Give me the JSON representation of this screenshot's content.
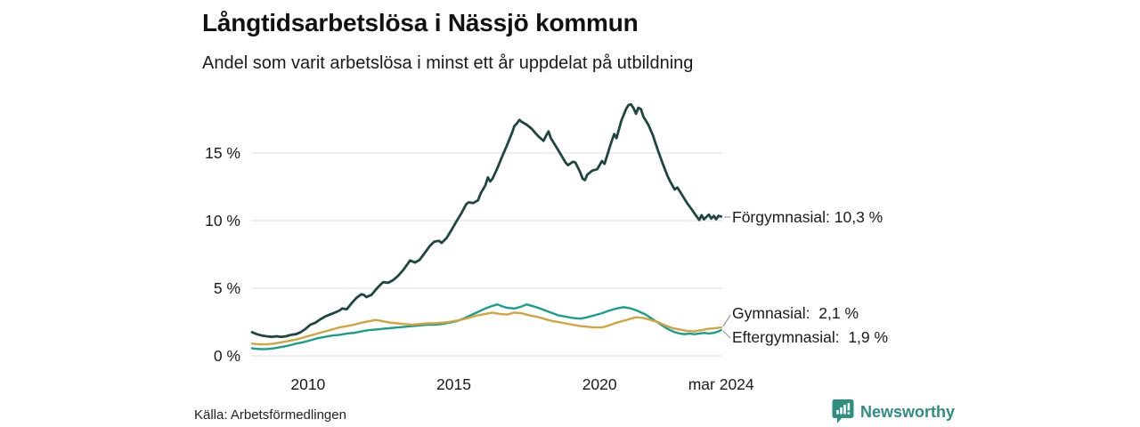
{
  "chart": {
    "title": "Långtidsarbetslösa i Nässjö kommun",
    "subtitle": "Andel som varit arbetslösa i minst ett år uppdelat på utbildning",
    "source": "Källa: Arbetsförmedlingen"
  },
  "branding": {
    "logo_text": "Newsworthy",
    "logo_color": "#2e8e80"
  },
  "chart_data": {
    "type": "line",
    "title": "Långtidsarbetslösa i Nässjö kommun",
    "subtitle": "Andel som varit arbetslösa i minst ett år uppdelat på utbildning",
    "source": "Källa: Arbetsförmedlingen",
    "grid": true,
    "background": "#ffffff",
    "grid_color": "#e4e4e4",
    "text_color": "#1a1a1a",
    "x_domain": [
      2008.05,
      2024.21
    ],
    "ylim": [
      0,
      19.5
    ],
    "y_unit": "%",
    "y_ticks": [
      {
        "label": "0 %",
        "value": 0
      },
      {
        "label": "5 %",
        "value": 5
      },
      {
        "label": "10 %",
        "value": 10
      },
      {
        "label": "15 %",
        "value": 15
      }
    ],
    "x_ticks": [
      {
        "label": "2010",
        "year": 2010
      },
      {
        "label": "2015",
        "year": 2015
      },
      {
        "label": "2020",
        "year": 2020
      },
      {
        "label": "mar 2024",
        "year": 2024.17
      }
    ],
    "series": [
      {
        "name": "Förgymnasial",
        "label": "Förgymnasial: 10,3 %",
        "end_value": 10.3,
        "end_value_label": "10,3 %",
        "color": "#1e4741",
        "points": [
          [
            2008.08,
            1.75
          ],
          [
            2008.25,
            1.6
          ],
          [
            2008.42,
            1.5
          ],
          [
            2008.58,
            1.45
          ],
          [
            2008.75,
            1.4
          ],
          [
            2008.92,
            1.45
          ],
          [
            2009.08,
            1.4
          ],
          [
            2009.25,
            1.45
          ],
          [
            2009.42,
            1.55
          ],
          [
            2009.58,
            1.6
          ],
          [
            2009.75,
            1.75
          ],
          [
            2009.92,
            2.0
          ],
          [
            2010.08,
            2.3
          ],
          [
            2010.25,
            2.45
          ],
          [
            2010.42,
            2.7
          ],
          [
            2010.58,
            2.9
          ],
          [
            2010.75,
            3.05
          ],
          [
            2010.92,
            3.2
          ],
          [
            2011.08,
            3.35
          ],
          [
            2011.17,
            3.5
          ],
          [
            2011.33,
            3.45
          ],
          [
            2011.5,
            3.9
          ],
          [
            2011.67,
            4.3
          ],
          [
            2011.83,
            4.55
          ],
          [
            2011.92,
            4.5
          ],
          [
            2012.0,
            4.35
          ],
          [
            2012.17,
            4.5
          ],
          [
            2012.33,
            4.9
          ],
          [
            2012.5,
            5.3
          ],
          [
            2012.58,
            5.45
          ],
          [
            2012.75,
            5.4
          ],
          [
            2012.92,
            5.6
          ],
          [
            2013.08,
            5.9
          ],
          [
            2013.25,
            6.3
          ],
          [
            2013.42,
            6.8
          ],
          [
            2013.5,
            7.05
          ],
          [
            2013.67,
            6.9
          ],
          [
            2013.83,
            7.1
          ],
          [
            2014.0,
            7.6
          ],
          [
            2014.17,
            8.1
          ],
          [
            2014.33,
            8.45
          ],
          [
            2014.5,
            8.5
          ],
          [
            2014.58,
            8.35
          ],
          [
            2014.75,
            8.7
          ],
          [
            2014.92,
            9.3
          ],
          [
            2015.08,
            9.9
          ],
          [
            2015.25,
            10.5
          ],
          [
            2015.42,
            11.2
          ],
          [
            2015.5,
            11.35
          ],
          [
            2015.67,
            11.3
          ],
          [
            2015.83,
            11.5
          ],
          [
            2015.92,
            12.0
          ],
          [
            2016.08,
            12.6
          ],
          [
            2016.17,
            13.2
          ],
          [
            2016.25,
            12.9
          ],
          [
            2016.33,
            13.1
          ],
          [
            2016.5,
            13.9
          ],
          [
            2016.67,
            14.8
          ],
          [
            2016.83,
            15.6
          ],
          [
            2017.0,
            16.5
          ],
          [
            2017.08,
            17.0
          ],
          [
            2017.17,
            17.2
          ],
          [
            2017.25,
            17.45
          ],
          [
            2017.33,
            17.3
          ],
          [
            2017.5,
            17.1
          ],
          [
            2017.67,
            16.8
          ],
          [
            2017.83,
            16.4
          ],
          [
            2017.92,
            16.2
          ],
          [
            2018.08,
            15.9
          ],
          [
            2018.17,
            16.3
          ],
          [
            2018.25,
            16.6
          ],
          [
            2018.33,
            16.1
          ],
          [
            2018.5,
            15.5
          ],
          [
            2018.67,
            14.9
          ],
          [
            2018.83,
            14.3
          ],
          [
            2018.92,
            14.1
          ],
          [
            2019.08,
            14.35
          ],
          [
            2019.17,
            14.3
          ],
          [
            2019.33,
            13.6
          ],
          [
            2019.42,
            13.1
          ],
          [
            2019.5,
            13.0
          ],
          [
            2019.58,
            13.4
          ],
          [
            2019.75,
            13.7
          ],
          [
            2019.92,
            13.8
          ],
          [
            2020.0,
            14.1
          ],
          [
            2020.08,
            14.4
          ],
          [
            2020.17,
            14.2
          ],
          [
            2020.33,
            15.3
          ],
          [
            2020.42,
            15.9
          ],
          [
            2020.5,
            16.4
          ],
          [
            2020.58,
            16.1
          ],
          [
            2020.75,
            17.4
          ],
          [
            2020.92,
            18.3
          ],
          [
            2021.0,
            18.55
          ],
          [
            2021.08,
            18.6
          ],
          [
            2021.17,
            18.3
          ],
          [
            2021.25,
            17.9
          ],
          [
            2021.33,
            18.35
          ],
          [
            2021.42,
            18.25
          ],
          [
            2021.5,
            17.7
          ],
          [
            2021.67,
            17.1
          ],
          [
            2021.83,
            16.3
          ],
          [
            2022.0,
            15.2
          ],
          [
            2022.17,
            14.2
          ],
          [
            2022.33,
            13.3
          ],
          [
            2022.42,
            12.9
          ],
          [
            2022.5,
            12.6
          ],
          [
            2022.58,
            12.3
          ],
          [
            2022.67,
            12.45
          ],
          [
            2022.83,
            11.9
          ],
          [
            2023.0,
            11.3
          ],
          [
            2023.17,
            10.8
          ],
          [
            2023.33,
            10.3
          ],
          [
            2023.42,
            10.05
          ],
          [
            2023.5,
            10.4
          ],
          [
            2023.58,
            10.1
          ],
          [
            2023.75,
            10.45
          ],
          [
            2023.83,
            10.15
          ],
          [
            2023.92,
            10.35
          ],
          [
            2024.0,
            10.1
          ],
          [
            2024.08,
            10.35
          ],
          [
            2024.17,
            10.3
          ]
        ]
      },
      {
        "name": "Gymnasial",
        "label": "Gymnasial:  2,1 %",
        "end_value": 2.1,
        "end_value_label": "2,1 %",
        "color": "#d2a43e",
        "points": [
          [
            2008.08,
            0.9
          ],
          [
            2008.33,
            0.85
          ],
          [
            2008.58,
            0.85
          ],
          [
            2008.83,
            0.9
          ],
          [
            2009.08,
            1.0
          ],
          [
            2009.33,
            1.1
          ],
          [
            2009.58,
            1.2
          ],
          [
            2009.83,
            1.35
          ],
          [
            2010.08,
            1.5
          ],
          [
            2010.33,
            1.65
          ],
          [
            2010.58,
            1.8
          ],
          [
            2010.83,
            1.95
          ],
          [
            2011.08,
            2.1
          ],
          [
            2011.33,
            2.2
          ],
          [
            2011.58,
            2.3
          ],
          [
            2011.83,
            2.45
          ],
          [
            2012.08,
            2.55
          ],
          [
            2012.33,
            2.65
          ],
          [
            2012.58,
            2.55
          ],
          [
            2012.83,
            2.45
          ],
          [
            2013.08,
            2.4
          ],
          [
            2013.33,
            2.35
          ],
          [
            2013.58,
            2.3
          ],
          [
            2013.83,
            2.35
          ],
          [
            2014.08,
            2.4
          ],
          [
            2014.33,
            2.4
          ],
          [
            2014.58,
            2.45
          ],
          [
            2014.83,
            2.5
          ],
          [
            2015.08,
            2.6
          ],
          [
            2015.33,
            2.7
          ],
          [
            2015.58,
            2.85
          ],
          [
            2015.83,
            3.0
          ],
          [
            2016.08,
            3.1
          ],
          [
            2016.33,
            3.2
          ],
          [
            2016.58,
            3.1
          ],
          [
            2016.83,
            3.05
          ],
          [
            2017.08,
            3.2
          ],
          [
            2017.33,
            3.15
          ],
          [
            2017.58,
            3.0
          ],
          [
            2017.83,
            2.9
          ],
          [
            2018.08,
            2.75
          ],
          [
            2018.33,
            2.6
          ],
          [
            2018.58,
            2.5
          ],
          [
            2018.83,
            2.4
          ],
          [
            2019.08,
            2.3
          ],
          [
            2019.33,
            2.2
          ],
          [
            2019.58,
            2.15
          ],
          [
            2019.83,
            2.1
          ],
          [
            2020.08,
            2.1
          ],
          [
            2020.33,
            2.25
          ],
          [
            2020.58,
            2.45
          ],
          [
            2020.83,
            2.6
          ],
          [
            2021.08,
            2.75
          ],
          [
            2021.25,
            2.85
          ],
          [
            2021.5,
            2.8
          ],
          [
            2021.75,
            2.65
          ],
          [
            2022.0,
            2.5
          ],
          [
            2022.25,
            2.25
          ],
          [
            2022.5,
            2.05
          ],
          [
            2022.75,
            1.95
          ],
          [
            2023.0,
            1.85
          ],
          [
            2023.25,
            1.8
          ],
          [
            2023.5,
            1.9
          ],
          [
            2023.75,
            2.0
          ],
          [
            2024.0,
            2.05
          ],
          [
            2024.17,
            2.1
          ]
        ]
      },
      {
        "name": "Eftergymnasial",
        "label": "Eftergymnasial:  1,9 %",
        "end_value": 1.9,
        "end_value_label": "1,9 %",
        "color": "#16a08c",
        "points": [
          [
            2008.08,
            0.55
          ],
          [
            2008.33,
            0.5
          ],
          [
            2008.58,
            0.5
          ],
          [
            2008.83,
            0.55
          ],
          [
            2009.08,
            0.65
          ],
          [
            2009.33,
            0.75
          ],
          [
            2009.58,
            0.9
          ],
          [
            2009.83,
            1.0
          ],
          [
            2010.08,
            1.15
          ],
          [
            2010.33,
            1.3
          ],
          [
            2010.58,
            1.4
          ],
          [
            2010.83,
            1.5
          ],
          [
            2011.08,
            1.55
          ],
          [
            2011.33,
            1.65
          ],
          [
            2011.58,
            1.7
          ],
          [
            2011.83,
            1.8
          ],
          [
            2012.08,
            1.9
          ],
          [
            2012.33,
            1.95
          ],
          [
            2012.58,
            2.0
          ],
          [
            2012.83,
            2.05
          ],
          [
            2013.08,
            2.1
          ],
          [
            2013.33,
            2.15
          ],
          [
            2013.58,
            2.2
          ],
          [
            2013.83,
            2.25
          ],
          [
            2014.08,
            2.3
          ],
          [
            2014.33,
            2.3
          ],
          [
            2014.58,
            2.35
          ],
          [
            2014.83,
            2.45
          ],
          [
            2015.08,
            2.55
          ],
          [
            2015.33,
            2.75
          ],
          [
            2015.58,
            3.0
          ],
          [
            2015.83,
            3.25
          ],
          [
            2016.08,
            3.5
          ],
          [
            2016.33,
            3.7
          ],
          [
            2016.5,
            3.8
          ],
          [
            2016.67,
            3.65
          ],
          [
            2016.83,
            3.55
          ],
          [
            2017.08,
            3.5
          ],
          [
            2017.33,
            3.65
          ],
          [
            2017.5,
            3.8
          ],
          [
            2017.67,
            3.7
          ],
          [
            2017.83,
            3.6
          ],
          [
            2018.08,
            3.4
          ],
          [
            2018.33,
            3.2
          ],
          [
            2018.58,
            3.0
          ],
          [
            2018.83,
            2.9
          ],
          [
            2019.08,
            2.8
          ],
          [
            2019.33,
            2.75
          ],
          [
            2019.58,
            2.85
          ],
          [
            2019.83,
            3.0
          ],
          [
            2020.08,
            3.15
          ],
          [
            2020.33,
            3.35
          ],
          [
            2020.58,
            3.5
          ],
          [
            2020.83,
            3.6
          ],
          [
            2021.08,
            3.5
          ],
          [
            2021.33,
            3.3
          ],
          [
            2021.58,
            3.05
          ],
          [
            2021.83,
            2.7
          ],
          [
            2022.08,
            2.35
          ],
          [
            2022.25,
            2.1
          ],
          [
            2022.42,
            1.9
          ],
          [
            2022.58,
            1.75
          ],
          [
            2022.75,
            1.65
          ],
          [
            2022.92,
            1.6
          ],
          [
            2023.08,
            1.65
          ],
          [
            2023.25,
            1.6
          ],
          [
            2023.42,
            1.65
          ],
          [
            2023.58,
            1.7
          ],
          [
            2023.75,
            1.65
          ],
          [
            2023.92,
            1.7
          ],
          [
            2024.08,
            1.8
          ],
          [
            2024.17,
            1.9
          ]
        ]
      }
    ]
  }
}
